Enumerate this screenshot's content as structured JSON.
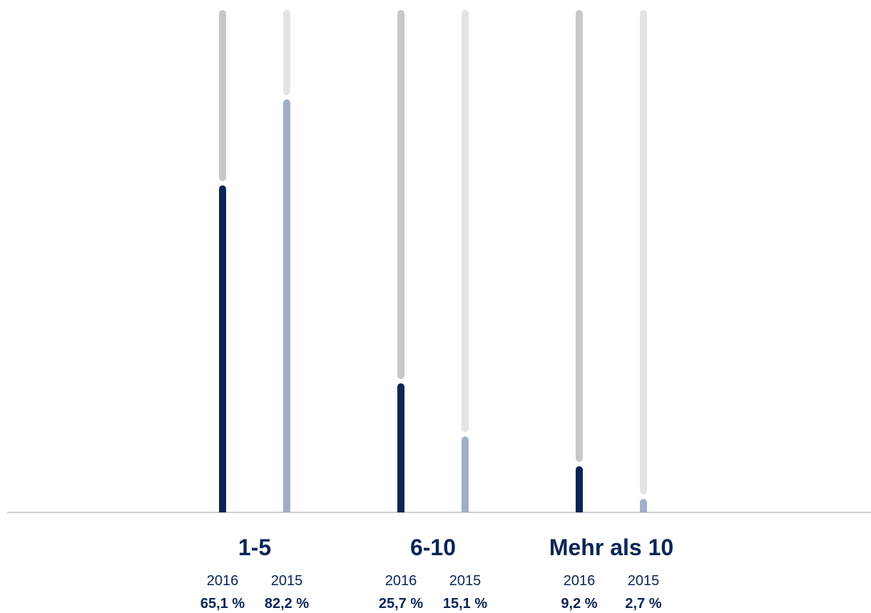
{
  "chart_data": {
    "type": "bar",
    "ylim": [
      0,
      100
    ],
    "categories": [
      "1-5",
      "6-10",
      "Mehr als 10"
    ],
    "series": [
      {
        "name": "2016",
        "values": [
          65.1,
          25.7,
          9.2
        ],
        "labels": [
          "65,1 %",
          "25,7 %",
          "9,2 %"
        ],
        "color": "#0b2556",
        "track_color": "#c8c8c8"
      },
      {
        "name": "2015",
        "values": [
          82.2,
          15.1,
          2.7
        ],
        "labels": [
          "82,2 %",
          "15,1 %",
          "2,7 %"
        ],
        "color": "#a3adc9",
        "track_color": "#e4e4e4"
      }
    ],
    "grid": false,
    "legend": "none"
  }
}
